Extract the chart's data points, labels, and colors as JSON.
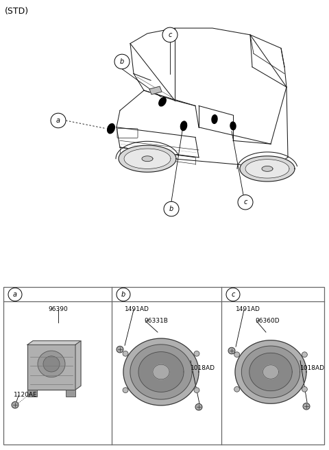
{
  "title": "(STD)",
  "background_color": "#ffffff",
  "text_color": "#000000",
  "label_a": "a",
  "label_b": "b",
  "label_c": "c",
  "part_a_codes": [
    "96390",
    "1120AE"
  ],
  "part_b_codes": [
    "1491AD",
    "96331B",
    "1018AD"
  ],
  "part_c_codes": [
    "1491AD",
    "96360D",
    "1018AD"
  ],
  "font_size_title": 9,
  "font_size_code": 6.5,
  "font_size_label": 7
}
